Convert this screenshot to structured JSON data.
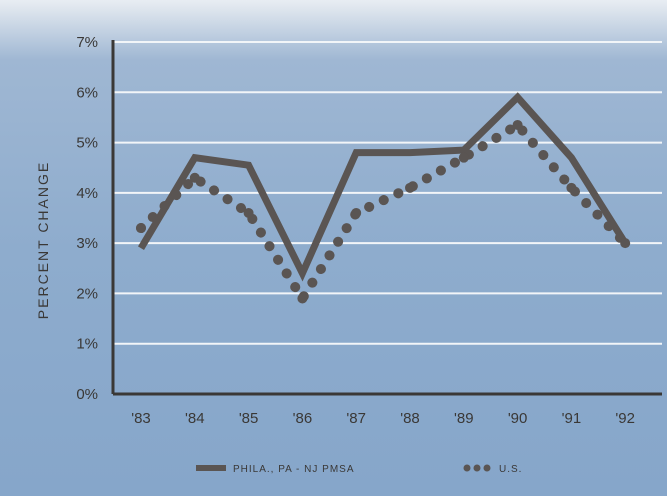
{
  "chart_data": {
    "type": "line",
    "title": "",
    "xlabel": "",
    "ylabel": "PERCENT CHANGE",
    "categories": [
      "'83",
      "'84",
      "'85",
      "'86",
      "'87",
      "'88",
      "'89",
      "'90",
      "'91",
      "'92"
    ],
    "y_ticks": [
      "0%",
      "1%",
      "2%",
      "3%",
      "4%",
      "5%",
      "6%",
      "7%"
    ],
    "ylim": [
      0,
      7
    ],
    "grid": true,
    "legend_position": "bottom",
    "series": [
      {
        "name": "PHILA., PA - NJ PMSA",
        "style": "solid",
        "color": "#5a5553",
        "values": [
          2.9,
          4.7,
          4.55,
          2.4,
          4.8,
          4.8,
          4.85,
          5.9,
          4.7,
          3.0
        ]
      },
      {
        "name": "U.S.",
        "style": "dotted",
        "color": "#5a5553",
        "values": [
          3.3,
          4.3,
          3.6,
          1.9,
          3.6,
          4.1,
          4.7,
          5.35,
          4.1,
          3.0
        ]
      }
    ],
    "colors": {
      "background": "#8eaccd",
      "gridline": "#f2f5f8",
      "axis": "#3a3836"
    }
  }
}
